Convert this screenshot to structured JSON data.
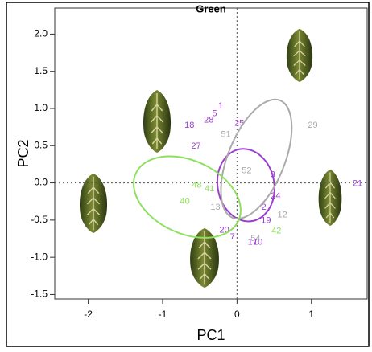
{
  "chart_data": {
    "type": "scatter",
    "title": "Green",
    "xlabel": "PC1",
    "ylabel": "PC2",
    "xlim": [
      -2.45,
      1.75
    ],
    "ylim": [
      -1.56,
      2.35
    ],
    "xticks": [
      -2,
      -1,
      0,
      1
    ],
    "yticks": [
      {
        "value": 2,
        "label": "2.0"
      },
      1.5,
      {
        "value": 1,
        "label": "1.0"
      },
      0.5,
      {
        "value": 0,
        "label": "0.0"
      },
      -0.5,
      {
        "value": -1,
        "label": "-1.0"
      },
      -1.5
    ],
    "series": [
      {
        "color": "#9b3fcf",
        "labels": [
          "1",
          "5",
          "28",
          "18",
          "25",
          "27",
          "3",
          "24",
          "2",
          "19",
          "21",
          "7",
          "17",
          "10",
          "20"
        ],
        "x": [
          -0.22,
          -0.3,
          -0.38,
          -0.64,
          0.03,
          -0.55,
          0.48,
          0.52,
          0.36,
          0.39,
          1.62,
          -0.06,
          0.21,
          0.28,
          -0.17
        ],
        "y": [
          1.03,
          0.93,
          0.84,
          0.77,
          0.8,
          0.49,
          0.11,
          -0.18,
          -0.33,
          -0.51,
          -0.01,
          -0.73,
          -0.8,
          -0.8,
          -0.64
        ],
        "ellipse": {
          "cx": 0.12,
          "cy": -0.03,
          "rx": 0.38,
          "ry": 0.49,
          "angle": -10
        }
      },
      {
        "color": "#aaaaaa",
        "labels": [
          "29",
          "51",
          "52",
          "13",
          "12",
          "54"
        ],
        "x": [
          1.02,
          -0.15,
          0.13,
          -0.29,
          0.61,
          0.25
        ],
        "y": [
          0.77,
          0.65,
          0.16,
          -0.33,
          -0.43,
          -0.75
        ],
        "ellipse": {
          "cx": 0.26,
          "cy": 0.32,
          "rx": 0.38,
          "ry": 0.85,
          "angle": 22
        }
      },
      {
        "color": "#8fe060",
        "labels": [
          "48",
          "41",
          "40",
          "42"
        ],
        "x": [
          -0.54,
          -0.37,
          -0.7,
          0.53
        ],
        "y": [
          -0.03,
          -0.08,
          -0.25,
          -0.65
        ],
        "ellipse": {
          "cx": -0.67,
          "cy": -0.19,
          "rx": 0.76,
          "ry": 0.49,
          "angle": 25
        }
      }
    ]
  }
}
